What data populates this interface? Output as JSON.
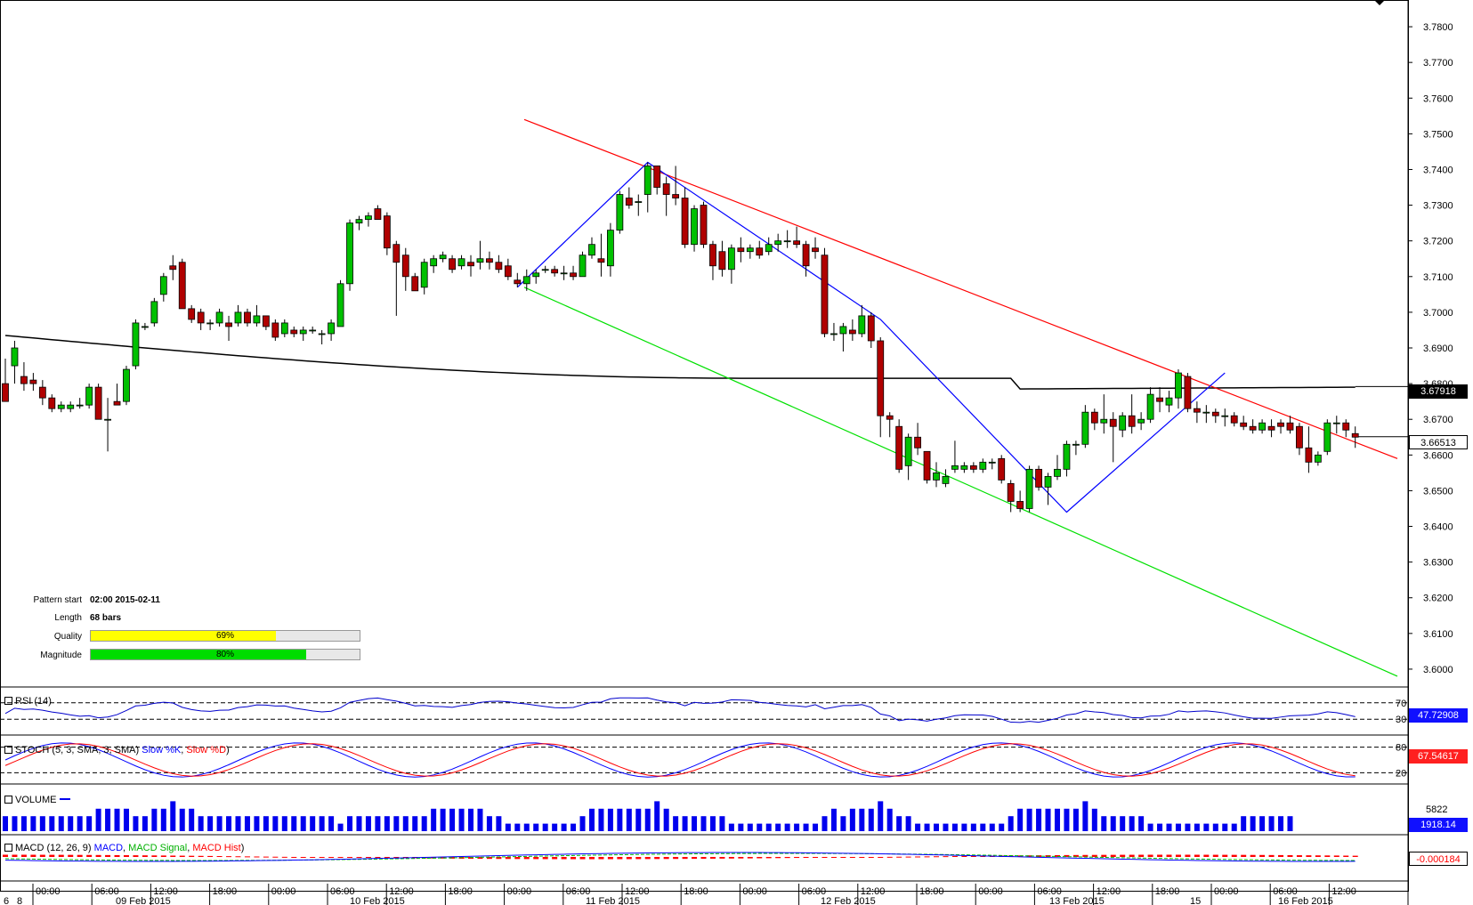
{
  "price_axis": {
    "ticks": [
      "3.7800",
      "3.7700",
      "3.7600",
      "3.7500",
      "3.7400",
      "3.7300",
      "3.7200",
      "3.7100",
      "3.7000",
      "3.6900",
      "3.6800",
      "3.6700",
      "3.6600",
      "3.6500",
      "3.6400",
      "3.6300",
      "3.6200",
      "3.6100",
      "3.6000"
    ],
    "ma_price_label": "3.67918",
    "last_price_label": "3.66513"
  },
  "pattern_info": {
    "start_label": "Pattern start",
    "start_value": "02:00 2015-02-11",
    "length_label": "Length",
    "length_value": "68 bars",
    "quality_label": "Quality",
    "quality_value": "69%",
    "quality_fraction": 0.69,
    "magnitude_label": "Magnitude",
    "magnitude_value": "80%",
    "magnitude_fraction": 0.8
  },
  "indicators": {
    "rsi": {
      "label": "RSI (14)",
      "value": "47.72908",
      "level_high": "70",
      "level_low": "30"
    },
    "stoch": {
      "label_prefix": "STOCH (5, 3, SMA, 3, SMA)",
      "slow_k": "Slow %K",
      "slow_d": "Slow %D",
      "value": "67.54617",
      "level_high": "80",
      "level_low": "20"
    },
    "volume": {
      "label": "VOLUME",
      "value": "1918.14",
      "max_label": "5822"
    },
    "macd": {
      "label_prefix": "MACD (12, 26, 9)",
      "macd": "MACD",
      "signal": "MACD Signal",
      "hist": "MACD Hist",
      "value": "-0.000184"
    }
  },
  "time_axis": {
    "times": [
      "00:00",
      "06:00",
      "12:00",
      "18:00",
      "00:00",
      "06:00",
      "12:00",
      "18:00",
      "00:00",
      "06:00",
      "12:00",
      "18:00",
      "00:00",
      "06:00",
      "12:00",
      "18:00",
      "00:00",
      "06:00",
      "12:00",
      "18:00",
      "00:00",
      "06:00",
      "12:00"
    ],
    "dates": [
      "6",
      "8",
      "09 Feb 2015",
      "10 Feb 2015",
      "11 Feb 2015",
      "12 Feb 2015",
      "13 Feb 2015",
      "15",
      "16 Feb 2015"
    ]
  },
  "colors": {
    "bull": "#00c000",
    "bear": "#b00000",
    "resistance": "#ff0000",
    "support": "#00e000",
    "pattern": "#0000ff",
    "ma": "#000000",
    "rsi": "#0000cc",
    "stoch_k": "#0000ff",
    "stoch_d": "#ff0000",
    "volume": "#0000ee",
    "macd_signal": "#00c000",
    "macd_hist": "#ff0000",
    "quality": "#ffff00",
    "magnitude": "#00dd00"
  },
  "chart_data": {
    "type": "candlestick",
    "interval": "1h",
    "y_range": [
      3.595,
      3.785
    ],
    "price_levels": {
      "moving_average": 3.67918,
      "last": 3.66513
    },
    "candles": [
      [
        3.68,
        3.687,
        3.675,
        3.675
      ],
      [
        3.685,
        3.692,
        3.68,
        3.69
      ],
      [
        3.682,
        3.686,
        3.678,
        3.68
      ],
      [
        3.681,
        3.683,
        3.678,
        3.68
      ],
      [
        3.679,
        3.681,
        3.674,
        3.676
      ],
      [
        3.676,
        3.677,
        3.672,
        3.673
      ],
      [
        3.673,
        3.675,
        3.672,
        3.674
      ],
      [
        3.673,
        3.675,
        3.672,
        3.674
      ],
      [
        3.674,
        3.676,
        3.673,
        3.674
      ],
      [
        3.674,
        3.68,
        3.673,
        3.679
      ],
      [
        3.679,
        3.68,
        3.67,
        3.67
      ],
      [
        3.67,
        3.676,
        3.661,
        3.67
      ],
      [
        3.675,
        3.68,
        3.674,
        3.674
      ],
      [
        3.675,
        3.685,
        3.674,
        3.684
      ],
      [
        3.685,
        3.698,
        3.684,
        3.697
      ],
      [
        3.696,
        3.697,
        3.695,
        3.696
      ],
      [
        3.697,
        3.704,
        3.696,
        3.703
      ],
      [
        3.705,
        3.711,
        3.703,
        3.71
      ],
      [
        3.713,
        3.716,
        3.709,
        3.712
      ],
      [
        3.714,
        3.715,
        3.701,
        3.701
      ],
      [
        3.701,
        3.702,
        3.697,
        3.698
      ],
      [
        3.7,
        3.701,
        3.695,
        3.697
      ],
      [
        3.697,
        3.698,
        3.695,
        3.697
      ],
      [
        3.697,
        3.701,
        3.696,
        3.7
      ],
      [
        3.697,
        3.699,
        3.692,
        3.696
      ],
      [
        3.697,
        3.702,
        3.696,
        3.7
      ],
      [
        3.7,
        3.701,
        3.696,
        3.697
      ],
      [
        3.697,
        3.702,
        3.696,
        3.699
      ],
      [
        3.699,
        3.699,
        3.695,
        3.696
      ],
      [
        3.697,
        3.698,
        3.692,
        3.693
      ],
      [
        3.694,
        3.698,
        3.693,
        3.697
      ],
      [
        3.695,
        3.696,
        3.693,
        3.694
      ],
      [
        3.694,
        3.696,
        3.692,
        3.695
      ],
      [
        3.695,
        3.696,
        3.694,
        3.695
      ],
      [
        3.694,
        3.695,
        3.691,
        3.694
      ],
      [
        3.694,
        3.698,
        3.692,
        3.697
      ],
      [
        3.696,
        3.709,
        3.696,
        3.708
      ],
      [
        3.708,
        3.726,
        3.706,
        3.725
      ],
      [
        3.725,
        3.727,
        3.723,
        3.726
      ],
      [
        3.726,
        3.728,
        3.724,
        3.727
      ],
      [
        3.729,
        3.73,
        3.726,
        3.726
      ],
      [
        3.727,
        3.728,
        3.716,
        3.718
      ],
      [
        3.719,
        3.72,
        3.699,
        3.714
      ],
      [
        3.716,
        3.718,
        3.706,
        3.71
      ],
      [
        3.71,
        3.711,
        3.706,
        3.706
      ],
      [
        3.707,
        3.715,
        3.705,
        3.714
      ],
      [
        3.713,
        3.716,
        3.711,
        3.715
      ],
      [
        3.715,
        3.717,
        3.714,
        3.716
      ],
      [
        3.715,
        3.716,
        3.711,
        3.712
      ],
      [
        3.713,
        3.716,
        3.712,
        3.715
      ],
      [
        3.714,
        3.716,
        3.71,
        3.713
      ],
      [
        3.714,
        3.72,
        3.712,
        3.715
      ],
      [
        3.715,
        3.717,
        3.712,
        3.714
      ],
      [
        3.714,
        3.716,
        3.711,
        3.712
      ],
      [
        3.713,
        3.715,
        3.709,
        3.71
      ],
      [
        3.709,
        3.711,
        3.707,
        3.708
      ],
      [
        3.708,
        3.712,
        3.706,
        3.71
      ],
      [
        3.71,
        3.712,
        3.708,
        3.711
      ],
      [
        3.712,
        3.713,
        3.711,
        3.712
      ],
      [
        3.712,
        3.713,
        3.71,
        3.711
      ],
      [
        3.711,
        3.713,
        3.709,
        3.711
      ],
      [
        3.711,
        3.713,
        3.709,
        3.71
      ],
      [
        3.71,
        3.717,
        3.71,
        3.716
      ],
      [
        3.716,
        3.721,
        3.715,
        3.719
      ],
      [
        3.715,
        3.722,
        3.71,
        3.714
      ],
      [
        3.713,
        3.725,
        3.71,
        3.723
      ],
      [
        3.723,
        3.734,
        3.722,
        3.733
      ],
      [
        3.732,
        3.735,
        3.729,
        3.73
      ],
      [
        3.731,
        3.733,
        3.727,
        3.731
      ],
      [
        3.733,
        3.742,
        3.728,
        3.741
      ],
      [
        3.741,
        3.74,
        3.733,
        3.735
      ],
      [
        3.736,
        3.738,
        3.727,
        3.733
      ],
      [
        3.733,
        3.741,
        3.73,
        3.732
      ],
      [
        3.732,
        3.735,
        3.718,
        3.719
      ],
      [
        3.719,
        3.73,
        3.717,
        3.729
      ],
      [
        3.73,
        3.731,
        3.718,
        3.719
      ],
      [
        3.719,
        3.72,
        3.709,
        3.713
      ],
      [
        3.717,
        3.72,
        3.71,
        3.712
      ],
      [
        3.712,
        3.719,
        3.708,
        3.718
      ],
      [
        3.718,
        3.721,
        3.714,
        3.717
      ],
      [
        3.717,
        3.719,
        3.715,
        3.718
      ],
      [
        3.718,
        3.72,
        3.715,
        3.716
      ],
      [
        3.717,
        3.721,
        3.716,
        3.719
      ],
      [
        3.719,
        3.722,
        3.717,
        3.72
      ],
      [
        3.72,
        3.723,
        3.718,
        3.72
      ],
      [
        3.72,
        3.724,
        3.718,
        3.719
      ],
      [
        3.719,
        3.72,
        3.71,
        3.713
      ],
      [
        3.718,
        3.721,
        3.715,
        3.717
      ],
      [
        3.716,
        3.718,
        3.693,
        3.694
      ],
      [
        3.694,
        3.697,
        3.692,
        3.694
      ],
      [
        3.694,
        3.697,
        3.689,
        3.696
      ],
      [
        3.695,
        3.698,
        3.692,
        3.694
      ],
      [
        3.694,
        3.702,
        3.693,
        3.699
      ],
      [
        3.699,
        3.7,
        3.69,
        3.692
      ],
      [
        3.692,
        3.693,
        3.665,
        3.671
      ],
      [
        3.671,
        3.672,
        3.665,
        3.67
      ],
      [
        3.668,
        3.67,
        3.655,
        3.656
      ],
      [
        3.657,
        3.666,
        3.653,
        3.665
      ],
      [
        3.665,
        3.669,
        3.66,
        3.662
      ],
      [
        3.661,
        3.661,
        3.652,
        3.653
      ],
      [
        3.653,
        3.658,
        3.651,
        3.655
      ],
      [
        3.652,
        3.656,
        3.651,
        3.654
      ],
      [
        3.656,
        3.664,
        3.655,
        3.657
      ],
      [
        3.656,
        3.658,
        3.655,
        3.657
      ],
      [
        3.657,
        3.658,
        3.655,
        3.656
      ],
      [
        3.656,
        3.659,
        3.655,
        3.658
      ],
      [
        3.658,
        3.659,
        3.656,
        3.658
      ],
      [
        3.659,
        3.66,
        3.652,
        3.653
      ],
      [
        3.652,
        3.653,
        3.644,
        3.647
      ],
      [
        3.647,
        3.65,
        3.644,
        3.645
      ],
      [
        3.645,
        3.657,
        3.644,
        3.656
      ],
      [
        3.656,
        3.657,
        3.65,
        3.651
      ],
      [
        3.651,
        3.655,
        3.646,
        3.654
      ],
      [
        3.654,
        3.66,
        3.653,
        3.656
      ],
      [
        3.656,
        3.664,
        3.654,
        3.663
      ],
      [
        3.663,
        3.664,
        3.66,
        3.663
      ],
      [
        3.663,
        3.674,
        3.662,
        3.672
      ],
      [
        3.672,
        3.673,
        3.667,
        3.669
      ],
      [
        3.669,
        3.677,
        3.666,
        3.67
      ],
      [
        3.67,
        3.672,
        3.658,
        3.668
      ],
      [
        3.667,
        3.672,
        3.665,
        3.671
      ],
      [
        3.671,
        3.677,
        3.666,
        3.668
      ],
      [
        3.669,
        3.672,
        3.667,
        3.67
      ],
      [
        3.67,
        3.679,
        3.669,
        3.677
      ],
      [
        3.676,
        3.679,
        3.672,
        3.675
      ],
      [
        3.674,
        3.678,
        3.672,
        3.676
      ],
      [
        3.676,
        3.684,
        3.673,
        3.683
      ],
      [
        3.682,
        3.683,
        3.672,
        3.673
      ],
      [
        3.673,
        3.675,
        3.669,
        3.672
      ],
      [
        3.672,
        3.674,
        3.669,
        3.672
      ],
      [
        3.672,
        3.673,
        3.669,
        3.671
      ],
      [
        3.671,
        3.673,
        3.668,
        3.671
      ],
      [
        3.671,
        3.672,
        3.668,
        3.669
      ],
      [
        3.669,
        3.671,
        3.667,
        3.668
      ],
      [
        3.668,
        3.67,
        3.666,
        3.667
      ],
      [
        3.667,
        3.67,
        3.666,
        3.669
      ],
      [
        3.668,
        3.67,
        3.665,
        3.667
      ],
      [
        3.669,
        3.67,
        3.666,
        3.668
      ],
      [
        3.669,
        3.671,
        3.666,
        3.667
      ],
      [
        3.668,
        3.669,
        3.66,
        3.662
      ],
      [
        3.662,
        3.668,
        3.655,
        3.658
      ],
      [
        3.658,
        3.661,
        3.657,
        3.66
      ],
      [
        3.661,
        3.67,
        3.66,
        3.669
      ],
      [
        3.669,
        3.671,
        3.666,
        3.669
      ],
      [
        3.669,
        3.67,
        3.665,
        3.667
      ],
      [
        3.666,
        3.668,
        3.662,
        3.665
      ]
    ],
    "volume": [
      2,
      2,
      2,
      2,
      2,
      2,
      2,
      2,
      2,
      2,
      3,
      3,
      3,
      3,
      2,
      2,
      3,
      3,
      4,
      3,
      3,
      2,
      2,
      2,
      2,
      2,
      2,
      2,
      2,
      2,
      2,
      2,
      2,
      2,
      2,
      2,
      1,
      2,
      2,
      2,
      2,
      2,
      2,
      2,
      2,
      2,
      3,
      3,
      3,
      3,
      3,
      3,
      2,
      2,
      1,
      1,
      1,
      1,
      1,
      1,
      1,
      1,
      2,
      3,
      3,
      3,
      3,
      3,
      3,
      3,
      4,
      3,
      2,
      2,
      2,
      2,
      2,
      2,
      1,
      1,
      1,
      1,
      1,
      1,
      1,
      1,
      1,
      1,
      2,
      3,
      2,
      3,
      3,
      3,
      4,
      3,
      2,
      2,
      1,
      1,
      1,
      1,
      1,
      1,
      1,
      1,
      1,
      1,
      2,
      3,
      3,
      3,
      3,
      3,
      3,
      3,
      4,
      3,
      2,
      2,
      2,
      2,
      2,
      1,
      1,
      1,
      1,
      1,
      1,
      1,
      1,
      1,
      1,
      2,
      2,
      2,
      2,
      2,
      2
    ],
    "trendlines": [
      {
        "name": "resistance",
        "from": [
          "10 Feb 2015 23:00",
          3.754
        ],
        "to": [
          "16 Feb 2015 15:00",
          3.659
        ]
      },
      {
        "name": "support",
        "from": [
          "11 Feb 2015 02:00",
          3.707
        ],
        "to": [
          "16 Feb 2015 15:00",
          3.598
        ]
      }
    ]
  }
}
